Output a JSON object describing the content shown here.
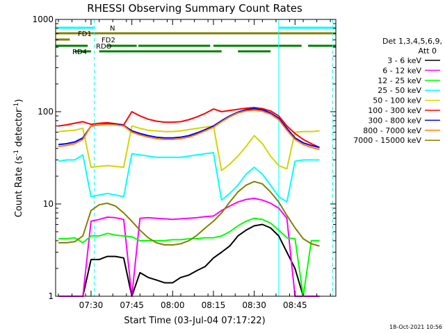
{
  "chart_data": {
    "type": "line",
    "title": "RHESSI Observing Summary Count Rates",
    "xlabel": "Start Time (03-Jul-04 07:17:22)",
    "ylabel_prefix": "Count Rate (s",
    "ylabel_sup1": "-1",
    "ylabel_mid": " detector",
    "ylabel_sup2": "-1",
    "ylabel_suffix": ")",
    "yscale": "log",
    "ylim": [
      1,
      1000
    ],
    "xlim_minutes": [
      7.283,
      9.0
    ],
    "x_tick_labels": [
      "07:30",
      "07:45",
      "08:00",
      "08:15",
      "08:30",
      "08:45"
    ],
    "x_tick_minutes": [
      7.5,
      7.75,
      8.0,
      8.25,
      8.5,
      8.75
    ],
    "y_tick_labels": [
      "1",
      "10",
      "100",
      "1000"
    ],
    "y_tick_values": [
      1,
      10,
      100,
      1000
    ],
    "legend_header": [
      "Det 1,3,4,5,6,9,",
      "Att 0"
    ],
    "legend_position": "right",
    "series": [
      {
        "name": "3 - 6 keV",
        "color": "#000000",
        "x": [
          7.3,
          7.4,
          7.45,
          7.5,
          7.55,
          7.6,
          7.65,
          7.7,
          7.75,
          7.8,
          7.85,
          7.9,
          7.95,
          8.0,
          8.05,
          8.1,
          8.15,
          8.2,
          8.25,
          8.3,
          8.35,
          8.4,
          8.45,
          8.5,
          8.55,
          8.6,
          8.65,
          8.7,
          8.75,
          8.8,
          8.85,
          8.9
        ],
        "values": [
          0.8,
          0.8,
          0.8,
          2.5,
          2.5,
          2.7,
          2.7,
          2.6,
          0.8,
          1.8,
          1.6,
          1.5,
          1.4,
          1.4,
          1.6,
          1.7,
          1.9,
          2.1,
          2.6,
          3.0,
          3.5,
          4.5,
          5.2,
          5.8,
          6.0,
          5.5,
          4.5,
          3.0,
          2.0,
          0.8,
          0.8,
          0.8
        ]
      },
      {
        "name": "6 - 12 keV",
        "color": "#ff00ff",
        "x": [
          7.3,
          7.4,
          7.45,
          7.5,
          7.55,
          7.6,
          7.65,
          7.7,
          7.75,
          7.8,
          7.85,
          7.9,
          7.95,
          8.0,
          8.05,
          8.1,
          8.15,
          8.2,
          8.25,
          8.3,
          8.35,
          8.4,
          8.45,
          8.5,
          8.55,
          8.6,
          8.65,
          8.7,
          8.75,
          8.8,
          8.85,
          8.9
        ],
        "values": [
          0.8,
          0.8,
          0.8,
          6.5,
          6.8,
          7.2,
          7.1,
          6.8,
          0.8,
          7.0,
          7.1,
          7.0,
          6.9,
          6.8,
          6.9,
          7.0,
          7.1,
          7.3,
          7.4,
          8.5,
          9.5,
          10.5,
          11.2,
          11.5,
          11.0,
          10.2,
          9.0,
          7.0,
          0.8,
          0.8,
          0.8,
          0.8
        ]
      },
      {
        "name": "12 - 25 keV",
        "color": "#00ff00",
        "x": [
          7.3,
          7.35,
          7.4,
          7.45,
          7.5,
          7.55,
          7.6,
          7.65,
          7.7,
          7.75,
          7.8,
          7.85,
          7.9,
          7.95,
          8.0,
          8.05,
          8.1,
          8.15,
          8.2,
          8.25,
          8.3,
          8.35,
          8.4,
          8.45,
          8.5,
          8.55,
          8.6,
          8.65,
          8.7,
          8.75,
          8.8,
          8.85,
          8.9
        ],
        "values": [
          4.2,
          4.2,
          4.3,
          3.8,
          4.5,
          4.5,
          4.8,
          4.6,
          4.5,
          4.4,
          4.0,
          4.0,
          4.0,
          4.0,
          4.1,
          4.1,
          4.2,
          4.2,
          4.3,
          4.3,
          4.5,
          5.0,
          5.8,
          6.5,
          7.0,
          6.8,
          6.2,
          5.2,
          4.3,
          4.2,
          1.0,
          4.0,
          4.0
        ]
      },
      {
        "name": "25 - 50 keV",
        "color": "#00ffff",
        "x": [
          7.3,
          7.35,
          7.4,
          7.45,
          7.5,
          7.55,
          7.6,
          7.65,
          7.7,
          7.75,
          7.8,
          7.85,
          7.9,
          7.95,
          8.0,
          8.05,
          8.1,
          8.15,
          8.2,
          8.25,
          8.3,
          8.35,
          8.4,
          8.45,
          8.5,
          8.55,
          8.6,
          8.65,
          8.7,
          8.75,
          8.8,
          8.85,
          8.9
        ],
        "values": [
          29,
          30,
          30,
          34,
          12,
          12.5,
          13,
          12.5,
          12,
          35,
          34,
          33,
          32,
          32,
          32,
          32,
          33,
          34,
          35,
          36,
          11,
          13,
          16,
          21,
          25,
          21,
          16,
          12,
          10.5,
          29,
          30,
          30,
          30
        ]
      },
      {
        "name": "50 - 100 keV",
        "color": "#d4d400",
        "x": [
          7.3,
          7.35,
          7.4,
          7.45,
          7.5,
          7.55,
          7.6,
          7.65,
          7.7,
          7.75,
          7.8,
          7.85,
          7.9,
          7.95,
          8.0,
          8.05,
          8.1,
          8.15,
          8.2,
          8.25,
          8.3,
          8.35,
          8.4,
          8.45,
          8.5,
          8.55,
          8.6,
          8.65,
          8.7,
          8.75,
          8.8,
          8.85,
          8.9
        ],
        "values": [
          61,
          62,
          63,
          66,
          25,
          25.5,
          26,
          25.5,
          25,
          70,
          66,
          63,
          62,
          61,
          61,
          62,
          64,
          66,
          68,
          70,
          23,
          27,
          33,
          42,
          55,
          45,
          33,
          26,
          24,
          60,
          61,
          61,
          62
        ]
      },
      {
        "name": "100 - 300 keV",
        "color": "#ff0000",
        "x": [
          7.3,
          7.35,
          7.4,
          7.45,
          7.5,
          7.55,
          7.6,
          7.65,
          7.7,
          7.75,
          7.8,
          7.85,
          7.9,
          7.95,
          8.0,
          8.05,
          8.1,
          8.15,
          8.2,
          8.25,
          8.3,
          8.35,
          8.4,
          8.45,
          8.5,
          8.55,
          8.6,
          8.65,
          8.7,
          8.75,
          8.8,
          8.85,
          8.9
        ],
        "values": [
          70,
          72,
          75,
          78,
          73,
          75,
          76,
          74,
          72,
          100,
          90,
          83,
          79,
          77,
          77,
          78,
          82,
          88,
          96,
          107,
          100,
          103,
          106,
          109,
          111,
          108,
          102,
          90,
          70,
          58,
          50,
          45,
          41
        ]
      },
      {
        "name": "300 - 800 keV",
        "color": "#0000ff",
        "x": [
          7.3,
          7.35,
          7.4,
          7.45,
          7.5,
          7.55,
          7.6,
          7.65,
          7.7,
          7.75,
          7.8,
          7.85,
          7.9,
          7.95,
          8.0,
          8.05,
          8.1,
          8.15,
          8.2,
          8.25,
          8.3,
          8.35,
          8.4,
          8.45,
          8.5,
          8.55,
          8.6,
          8.65,
          8.7,
          8.75,
          8.8,
          8.85,
          8.9
        ],
        "values": [
          44,
          45,
          47,
          52,
          70,
          72,
          74,
          73,
          71,
          62,
          58,
          55,
          53,
          52,
          52,
          53,
          55,
          59,
          64,
          70,
          80,
          90,
          99,
          105,
          108,
          105,
          97,
          85,
          66,
          52,
          46,
          43,
          41
        ]
      },
      {
        "name": "800 - 7000 keV",
        "color": "#ff8000",
        "x": [
          7.3,
          7.35,
          7.4,
          7.45,
          7.5,
          7.55,
          7.6,
          7.65,
          7.7,
          7.75,
          7.8,
          7.85,
          7.9,
          7.95,
          8.0,
          8.05,
          8.1,
          8.15,
          8.2,
          8.25,
          8.3,
          8.35,
          8.4,
          8.45,
          8.5,
          8.55,
          8.6,
          8.65,
          8.7,
          8.75,
          8.8,
          8.85,
          8.9
        ],
        "values": [
          42,
          43,
          45,
          50,
          70,
          72,
          73,
          72,
          70,
          60,
          56,
          53,
          51,
          50,
          50,
          51,
          53,
          57,
          62,
          68,
          78,
          88,
          97,
          102,
          104,
          101,
          94,
          82,
          63,
          50,
          44,
          41,
          39
        ]
      },
      {
        "name": "7000 - 15000 keV",
        "color": "#808000",
        "x": [
          7.3,
          7.35,
          7.4,
          7.45,
          7.5,
          7.55,
          7.6,
          7.65,
          7.7,
          7.75,
          7.8,
          7.85,
          7.9,
          7.95,
          8.0,
          8.05,
          8.1,
          8.15,
          8.2,
          8.25,
          8.3,
          8.35,
          8.4,
          8.45,
          8.5,
          8.55,
          8.6,
          8.65,
          8.7,
          8.75,
          8.8,
          8.85,
          8.9
        ],
        "values": [
          3.8,
          3.8,
          3.9,
          4.5,
          8.5,
          9.8,
          10.2,
          9.5,
          8.0,
          6.5,
          5.2,
          4.3,
          3.8,
          3.6,
          3.6,
          3.7,
          4.0,
          4.6,
          5.5,
          6.5,
          8.0,
          10.5,
          13.5,
          16.0,
          17.5,
          16.5,
          13.5,
          10.5,
          7.5,
          5.5,
          4.2,
          3.7,
          3.5
        ]
      }
    ],
    "state_bars": [
      {
        "label": "N",
        "color": "#00ffff",
        "segments": [
          [
            7.283,
            7.52
          ],
          [
            8.65,
            9.0
          ]
        ]
      },
      {
        "label": "FD1",
        "color": "#808000",
        "segments": [
          [
            7.283,
            9.0
          ]
        ]
      },
      {
        "label": "FD2",
        "color": "#808000",
        "segments": [
          [
            7.283,
            7.37
          ]
        ]
      },
      {
        "label": "RDO",
        "color": "#008000",
        "segments": [
          [
            7.283,
            7.48
          ],
          [
            7.6,
            7.78
          ],
          [
            7.79,
            8.23
          ],
          [
            8.25,
            8.79
          ],
          [
            8.83,
            9.0
          ]
        ]
      },
      {
        "label": "RD4",
        "color": "#008000",
        "segments": [
          [
            7.4,
            7.5
          ],
          [
            7.55,
            8.3
          ],
          [
            8.4,
            8.6
          ]
        ]
      }
    ],
    "vertical_lines": [
      {
        "minute": 7.283,
        "color": "#00ffff",
        "style": "solid"
      },
      {
        "minute": 7.52,
        "color": "#00ffff",
        "style": "dashed"
      },
      {
        "minute": 8.65,
        "color": "#00ffff",
        "style": "solid"
      },
      {
        "minute": 8.98,
        "color": "#00ffff",
        "style": "dashed"
      }
    ]
  },
  "footer_timestamp": "18-Oct-2021 10:56"
}
